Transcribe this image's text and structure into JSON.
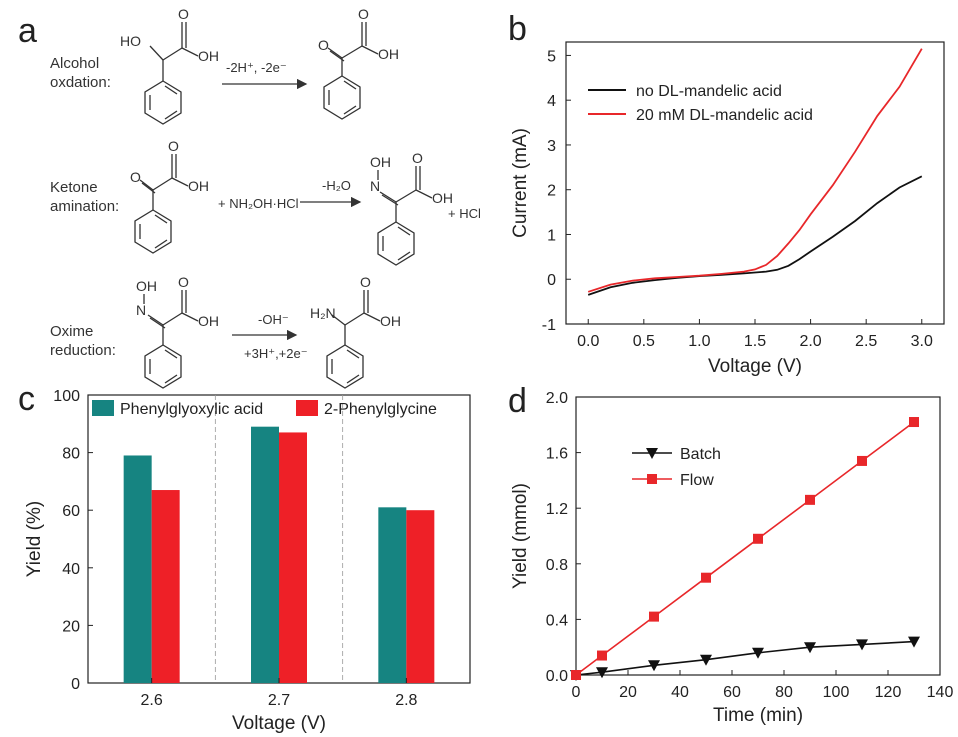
{
  "panel_letters": {
    "a": "a",
    "b": "b",
    "c": "c",
    "d": "d"
  },
  "scheme": {
    "step1_label_1": "Alcohol",
    "step1_label_2": "oxdation:",
    "step1_cond": "-2H⁺, -2e⁻",
    "step2_label_1": "Ketone",
    "step2_label_2": "amination:",
    "step2_reagent": "+ NH₂OH·HCl",
    "step2_cond": "-H₂O",
    "step2_byproduct": "+ HCl",
    "step3_label_1": "Oxime",
    "step3_label_2": "reduction:",
    "step3_cond_top": "-OH⁻",
    "step3_cond_bottom": "+3H⁺,+2e⁻",
    "atoms": {
      "ho": "HO",
      "oh": "OH",
      "o": "O",
      "n": "N",
      "h2n": "H₂N"
    }
  },
  "chart_data": [
    {
      "panel": "b",
      "type": "line",
      "xlabel": "Voltage (V)",
      "ylabel": "Current (mA)",
      "xlim": [
        -0.2,
        3.2
      ],
      "ylim": [
        -1,
        5.3
      ],
      "xticks": [
        0.0,
        0.5,
        1.0,
        1.5,
        2.0,
        2.5,
        3.0
      ],
      "xtick_labels": [
        "0.0",
        "0.5",
        "1.0",
        "1.5",
        "2.0",
        "2.5",
        "3.0"
      ],
      "yticks": [
        -1,
        0,
        1,
        2,
        3,
        4,
        5
      ],
      "ytick_labels": [
        "-1",
        "0",
        "1",
        "2",
        "3",
        "4",
        "5"
      ],
      "legend_position": "top-left",
      "series": [
        {
          "name": "no DL-mandelic acid",
          "color": "#111111",
          "x": [
            0.0,
            0.2,
            0.4,
            0.6,
            0.8,
            1.0,
            1.2,
            1.4,
            1.6,
            1.7,
            1.8,
            1.9,
            2.0,
            2.2,
            2.4,
            2.6,
            2.8,
            3.0
          ],
          "y": [
            -0.35,
            -0.18,
            -0.08,
            -0.02,
            0.03,
            0.07,
            0.1,
            0.13,
            0.17,
            0.21,
            0.3,
            0.45,
            0.62,
            0.95,
            1.3,
            1.7,
            2.05,
            2.3
          ]
        },
        {
          "name": "20 mM DL-mandelic acid",
          "color": "#e8272a",
          "x": [
            0.0,
            0.2,
            0.4,
            0.6,
            0.8,
            1.0,
            1.2,
            1.4,
            1.5,
            1.6,
            1.7,
            1.8,
            1.9,
            2.0,
            2.2,
            2.4,
            2.6,
            2.8,
            3.0
          ],
          "y": [
            -0.28,
            -0.12,
            -0.03,
            0.02,
            0.05,
            0.08,
            0.12,
            0.17,
            0.22,
            0.32,
            0.52,
            0.8,
            1.1,
            1.45,
            2.1,
            2.85,
            3.65,
            4.3,
            5.15
          ]
        }
      ]
    },
    {
      "panel": "c",
      "type": "bar",
      "xlabel": "Voltage (V)",
      "ylabel": "Yield (%)",
      "ylim": [
        0,
        100
      ],
      "yticks": [
        0,
        20,
        40,
        60,
        80,
        100
      ],
      "ytick_labels": [
        "0",
        "20",
        "40",
        "60",
        "80",
        "100"
      ],
      "categories": [
        "2.6",
        "2.7",
        "2.8"
      ],
      "legend_position": "top",
      "series": [
        {
          "name": "Phenylglyoxylic acid",
          "color": "#168481",
          "values": [
            79,
            89,
            61
          ]
        },
        {
          "name": "2-Phenylglycine",
          "color": "#ee2027",
          "values": [
            67,
            87,
            60
          ]
        }
      ]
    },
    {
      "panel": "d",
      "type": "line",
      "xlabel": "Time (min)",
      "ylabel": "Yield (mmol)",
      "xlim": [
        0,
        140
      ],
      "ylim": [
        0,
        2.0
      ],
      "xticks": [
        0,
        20,
        40,
        60,
        80,
        100,
        120,
        140
      ],
      "xtick_labels": [
        "0",
        "20",
        "40",
        "60",
        "80",
        "100",
        "120",
        "140"
      ],
      "yticks": [
        0.0,
        0.4,
        0.8,
        1.2,
        1.6,
        2.0
      ],
      "ytick_labels": [
        "0.0",
        "0.4",
        "0.8",
        "1.2",
        "1.6",
        "2.0"
      ],
      "legend_position": "top-left",
      "series": [
        {
          "name": "Batch",
          "color": "#111111",
          "marker": "triangle-down",
          "x": [
            0,
            10,
            30,
            50,
            70,
            90,
            110,
            130
          ],
          "y": [
            0.0,
            0.02,
            0.07,
            0.11,
            0.16,
            0.2,
            0.22,
            0.24
          ]
        },
        {
          "name": "Flow",
          "color": "#e8272a",
          "marker": "square",
          "x": [
            0,
            10,
            30,
            50,
            70,
            90,
            110,
            130
          ],
          "y": [
            0.0,
            0.14,
            0.42,
            0.7,
            0.98,
            1.26,
            1.54,
            1.82
          ]
        }
      ]
    }
  ]
}
